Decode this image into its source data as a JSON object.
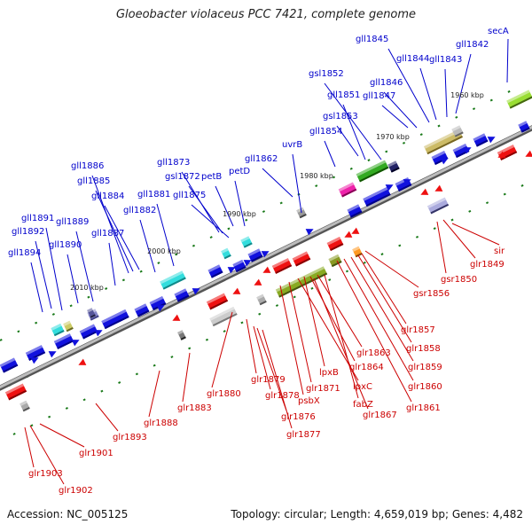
{
  "title": "Gloeobacter violaceus PCC 7421, complete genome",
  "footer": {
    "accession": "Accession: NC_005125",
    "summary": "Topology: circular; Length: 4,659,019 bp; Genes: 4,482"
  },
  "colors": {
    "forward_label": "#0000cc",
    "reverse_label": "#cc0000",
    "axis": "#777777",
    "tick": "#1a7a1a"
  },
  "scale_labels": [
    "1960 kbp",
    "1970 kbp",
    "1980 kbp",
    "1990 kbp",
    "2000 kbp",
    "2010 kbp"
  ],
  "forward_genes": [
    "gll1845",
    "gll1844",
    "gll1843",
    "gll1842",
    "secA",
    "gll1846",
    "gll1847",
    "gsl1852",
    "gll1851",
    "gsl1853",
    "gll1854",
    "uvrB",
    "gll1862",
    "gll1873",
    "gsl1872",
    "petB",
    "petD",
    "gll1875",
    "gll1881",
    "gll1882",
    "gll1886",
    "gll1885",
    "gll1884",
    "gll1887",
    "gll1891",
    "gll1889",
    "gll1892",
    "gll1890",
    "gll1894"
  ],
  "reverse_genes": [
    "sir",
    "glr1849",
    "gsr1850",
    "gsr1856",
    "glr1857",
    "glr1858",
    "glr1859",
    "glr1860",
    "glr1861",
    "glr1863",
    "glr1864",
    "lpxB",
    "lpxC",
    "glr1871",
    "psbX",
    "fabZ",
    "glr1867",
    "glr1878",
    "glr1879",
    "glr1876",
    "glr1877",
    "glr1880",
    "glr1883",
    "glr1888",
    "glr1893",
    "glr1901",
    "glr1903",
    "glr1902"
  ]
}
